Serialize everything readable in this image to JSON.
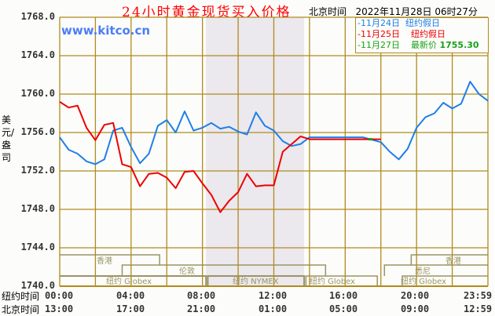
{
  "header": {
    "title": "24小时黄金现货买入价格",
    "beijing_time_label": "北京时间",
    "timestamp": "2022年11月28日 06时27分",
    "watermark": "www.kitco.cn"
  },
  "legend": {
    "items": [
      {
        "date": "-11月24日",
        "note": "纽约假日",
        "color": "#1e7fe8"
      },
      {
        "date": "-11月25日",
        "note": "纽约假日",
        "color": "#ee0000"
      },
      {
        "date": "-11月27日",
        "note": "最新价",
        "value": "1755.30",
        "color": "#1aa01a"
      }
    ]
  },
  "axis": {
    "y_label": "美元/盎司",
    "y_ticks": [
      "1768.0",
      "1764.0",
      "1760.0",
      "1756.0",
      "1752.0",
      "1748.0",
      "1744.0",
      "1740.0"
    ],
    "ny_time_label": "纽约时间",
    "bj_time_label": "北京时间",
    "ny_ticks": [
      "00:00",
      "04:00",
      "08:00",
      "12:00",
      "16:00",
      "20:00",
      "23:59"
    ],
    "bj_ticks": [
      "13:00",
      "17:00",
      "21:00",
      "01:00",
      "05:00",
      "09:00",
      "12:59"
    ]
  },
  "sessions": {
    "hongkong": "香港",
    "london": "伦敦",
    "ny_globex": "纽约 Globex",
    "ny_nymex": "纽约 NYMEX",
    "sydney": "悉尼"
  },
  "colors": {
    "grid": "#b08a1e",
    "shade": "#ebe8ee",
    "session_box": "#9a9466"
  },
  "chart_data": {
    "type": "line",
    "title": "24小时黄金现货买入价格",
    "xlabel": "纽约时间 / 北京时间",
    "ylabel": "美元/盎司",
    "ylim": [
      1740,
      1768
    ],
    "xlim_hours_ny": [
      0,
      24
    ],
    "grid": true,
    "legend_position": "top-right",
    "shaded_region_ny_hours": [
      8.2,
      13.7
    ],
    "series": [
      {
        "name": "11月24日 纽约假日",
        "color": "#1e7fe8",
        "x": [
          0,
          0.5,
          1,
          1.5,
          2,
          2.5,
          3,
          3.5,
          4,
          4.5,
          5,
          5.5,
          6,
          6.5,
          7,
          7.5,
          8,
          8.5,
          9,
          9.5,
          10,
          10.5,
          11,
          11.5,
          12,
          12.5,
          13,
          13.5,
          14,
          14.5,
          15,
          16,
          17,
          18,
          18.5,
          19,
          19.5,
          20,
          20.5,
          21,
          21.5,
          22,
          22.5,
          23,
          23.5,
          24
        ],
        "values": [
          1755.5,
          1754.2,
          1753.8,
          1753.0,
          1752.7,
          1753.2,
          1756.2,
          1756.5,
          1754.5,
          1752.8,
          1753.8,
          1756.7,
          1757.3,
          1756.0,
          1758.2,
          1756.2,
          1756.5,
          1757.0,
          1756.4,
          1756.6,
          1756.1,
          1755.8,
          1758.1,
          1756.7,
          1756.2,
          1755.1,
          1754.6,
          1754.8,
          1755.5,
          1755.5,
          1755.5,
          1755.5,
          1755.5,
          1755.0,
          1754.0,
          1753.2,
          1754.3,
          1756.5,
          1757.6,
          1758.0,
          1759.1,
          1758.5,
          1759.0,
          1761.3,
          1760.0,
          1759.3
        ]
      },
      {
        "name": "11月25日 纽约假日",
        "color": "#ee0000",
        "x": [
          0,
          0.5,
          1,
          1.5,
          2,
          2.5,
          3,
          3.5,
          4,
          4.5,
          5,
          5.5,
          6,
          6.5,
          7,
          7.5,
          8,
          8.5,
          9,
          9.5,
          10,
          10.5,
          11,
          11.5,
          12,
          12.5,
          13,
          13.5,
          14,
          14.5,
          15,
          16,
          17,
          18
        ],
        "values": [
          1759.2,
          1758.6,
          1758.8,
          1756.5,
          1755.2,
          1756.8,
          1757.0,
          1752.7,
          1752.4,
          1750.4,
          1751.7,
          1751.8,
          1751.3,
          1750.2,
          1751.9,
          1752.0,
          1750.7,
          1749.5,
          1747.7,
          1748.9,
          1749.8,
          1751.7,
          1750.4,
          1750.5,
          1750.5,
          1754.0,
          1754.8,
          1755.6,
          1755.3,
          1755.3,
          1755.3,
          1755.3,
          1755.3,
          1755.3
        ]
      },
      {
        "name": "11月27日 最新价 1755.30",
        "color": "#1aa01a",
        "x": [
          17.3,
          17.55
        ],
        "values": [
          1755.3,
          1755.3
        ]
      }
    ]
  }
}
